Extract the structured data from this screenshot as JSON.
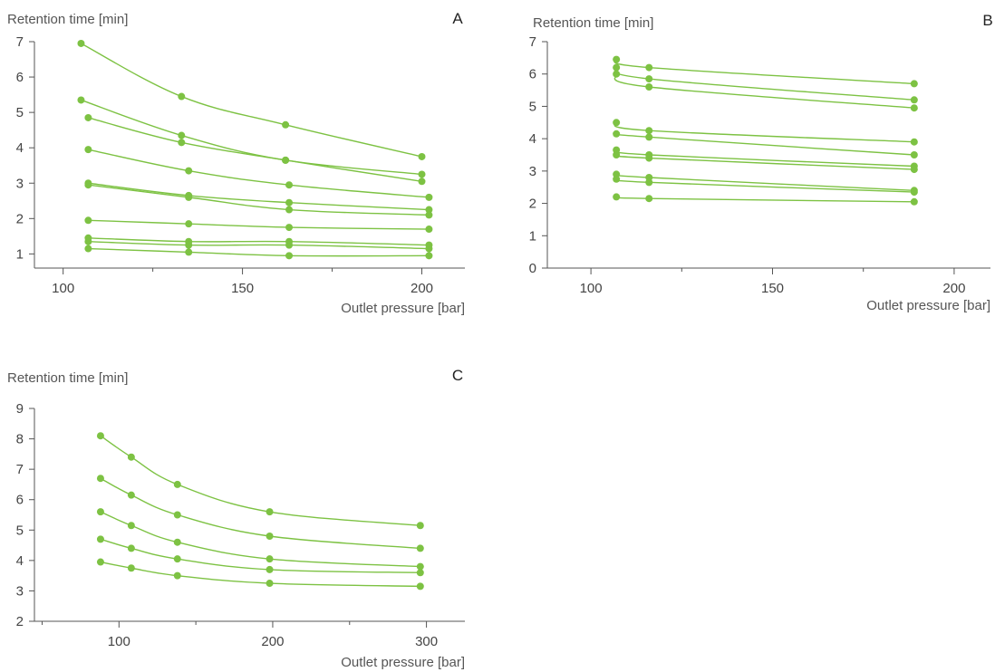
{
  "colors": {
    "series": "#7dc243",
    "axis": "#555555",
    "text": "#444444"
  },
  "chart_data": [
    {
      "type": "line",
      "title": "A",
      "xlabel": "Outlet pressure [bar]",
      "ylabel": "Retention time [min]",
      "xlim": [
        92,
        212
      ],
      "ylim": [
        0.6,
        7
      ],
      "xticks": [
        100,
        150,
        200
      ],
      "xminor": [
        125,
        175
      ],
      "yticks": [
        1,
        2,
        3,
        4,
        5,
        6,
        7
      ],
      "grid": false,
      "legend": "none",
      "series": [
        {
          "x": [
            105,
            133,
            162,
            200
          ],
          "y": [
            6.95,
            5.45,
            4.65,
            3.75
          ]
        },
        {
          "x": [
            105,
            133,
            162,
            200
          ],
          "y": [
            5.35,
            4.35,
            3.65,
            3.25
          ]
        },
        {
          "x": [
            107,
            133,
            162,
            200
          ],
          "y": [
            4.85,
            4.15,
            3.65,
            3.05
          ]
        },
        {
          "x": [
            107,
            135,
            163,
            202
          ],
          "y": [
            3.95,
            3.35,
            2.95,
            2.6
          ]
        },
        {
          "x": [
            107,
            135,
            163,
            202
          ],
          "y": [
            3.0,
            2.65,
            2.45,
            2.25
          ]
        },
        {
          "x": [
            107,
            135,
            163,
            202
          ],
          "y": [
            2.95,
            2.6,
            2.25,
            2.1
          ]
        },
        {
          "x": [
            107,
            135,
            163,
            202
          ],
          "y": [
            1.95,
            1.85,
            1.75,
            1.7
          ]
        },
        {
          "x": [
            107,
            135,
            163,
            202
          ],
          "y": [
            1.45,
            1.35,
            1.35,
            1.25
          ]
        },
        {
          "x": [
            107,
            135,
            163,
            202
          ],
          "y": [
            1.35,
            1.25,
            1.25,
            1.15
          ]
        },
        {
          "x": [
            107,
            135,
            163,
            202
          ],
          "y": [
            1.15,
            1.05,
            0.95,
            0.95
          ]
        }
      ]
    },
    {
      "type": "line",
      "title": "B",
      "xlabel": "Outlet pressure [bar]",
      "ylabel": "Retention time [min]",
      "xlim": [
        88,
        210
      ],
      "ylim": [
        0,
        7
      ],
      "xticks": [
        100,
        150,
        200
      ],
      "xminor": [
        125,
        175
      ],
      "yticks": [
        0,
        1,
        2,
        3,
        4,
        5,
        6,
        7
      ],
      "grid": false,
      "legend": "none",
      "series": [
        {
          "x": [
            107,
            116,
            189
          ],
          "y": [
            6.45,
            6.2,
            5.7
          ]
        },
        {
          "x": [
            107,
            116,
            189
          ],
          "y": [
            6.2,
            5.85,
            5.2
          ]
        },
        {
          "x": [
            107,
            116,
            189
          ],
          "y": [
            6.0,
            5.6,
            4.95
          ]
        },
        {
          "x": [
            107,
            116,
            189
          ],
          "y": [
            4.5,
            4.25,
            3.9
          ]
        },
        {
          "x": [
            107,
            116,
            189
          ],
          "y": [
            4.15,
            4.05,
            3.5
          ]
        },
        {
          "x": [
            107,
            116,
            189
          ],
          "y": [
            3.65,
            3.5,
            3.15
          ]
        },
        {
          "x": [
            107,
            116,
            189
          ],
          "y": [
            3.5,
            3.4,
            3.05
          ]
        },
        {
          "x": [
            107,
            116,
            189
          ],
          "y": [
            2.9,
            2.8,
            2.4
          ]
        },
        {
          "x": [
            107,
            116,
            189
          ],
          "y": [
            2.75,
            2.65,
            2.35
          ]
        },
        {
          "x": [
            107,
            116,
            189
          ],
          "y": [
            2.2,
            2.15,
            2.05
          ]
        }
      ]
    },
    {
      "type": "line",
      "title": "C",
      "xlabel": "Outlet pressure [bar]",
      "ylabel": "Retention time [min]",
      "xlim": [
        45,
        325
      ],
      "ylim": [
        2,
        9
      ],
      "xticks": [
        100,
        200,
        300
      ],
      "xminor": [
        50,
        150,
        250
      ],
      "yticks": [
        2,
        3,
        4,
        5,
        6,
        7,
        8,
        9
      ],
      "grid": false,
      "legend": "none",
      "series": [
        {
          "x": [
            88,
            108,
            138,
            198,
            296
          ],
          "y": [
            8.1,
            7.4,
            6.5,
            5.6,
            5.15
          ]
        },
        {
          "x": [
            88,
            108,
            138,
            198,
            296
          ],
          "y": [
            6.7,
            6.15,
            5.5,
            4.8,
            4.4
          ]
        },
        {
          "x": [
            88,
            108,
            138,
            198,
            296
          ],
          "y": [
            5.6,
            5.15,
            4.6,
            4.05,
            3.8
          ]
        },
        {
          "x": [
            88,
            108,
            138,
            198,
            296
          ],
          "y": [
            4.7,
            4.4,
            4.05,
            3.7,
            3.6
          ]
        },
        {
          "x": [
            88,
            108,
            138,
            198,
            296
          ],
          "y": [
            3.95,
            3.75,
            3.5,
            3.25,
            3.15
          ]
        }
      ]
    }
  ]
}
